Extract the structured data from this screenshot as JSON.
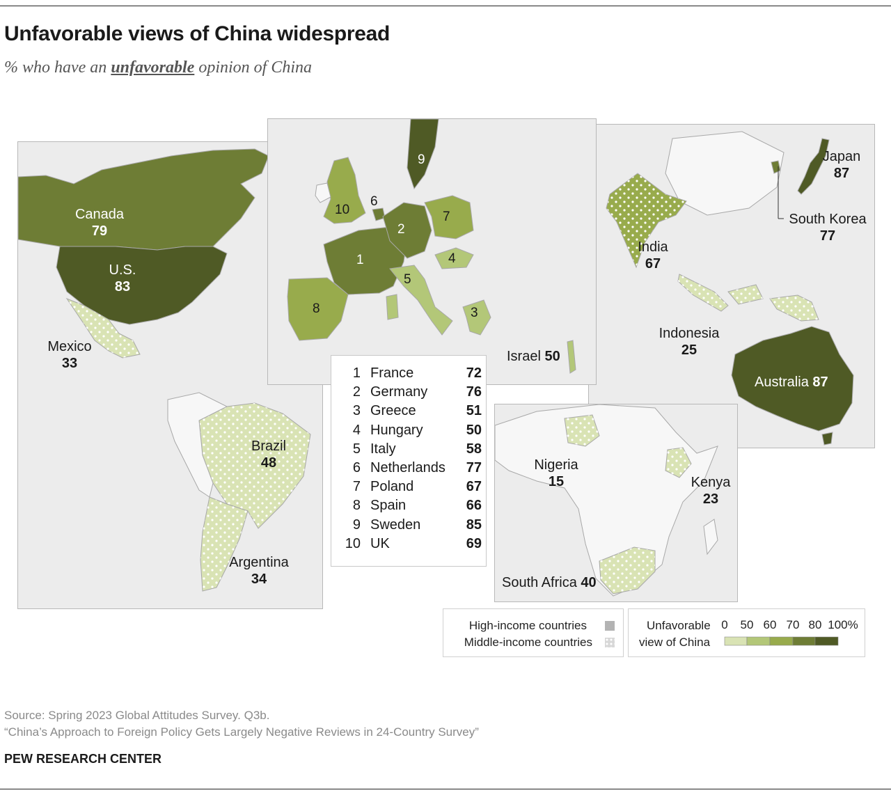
{
  "title": "Unfavorable views of China widespread",
  "subtitle": {
    "prefix": "% who have an",
    "emphasis": "unfavorable",
    "suffix": "opinion of China"
  },
  "colors": {
    "band_0_50": "#d9e3b4",
    "band_50_60": "#b3c778",
    "band_60_70": "#98ab4c",
    "band_70_80": "#6e7d35",
    "band_80_100": "#4f5a25",
    "no_data": "#ececec",
    "high_income_swatch": "#b3b3b3",
    "middle_income_swatch": "#d8d8d8"
  },
  "countries": {
    "canada": {
      "name": "Canada",
      "value": "79"
    },
    "us": {
      "name": "U.S.",
      "value": "83"
    },
    "mexico": {
      "name": "Mexico",
      "value": "33"
    },
    "brazil": {
      "name": "Brazil",
      "value": "48"
    },
    "argentina": {
      "name": "Argentina",
      "value": "34"
    },
    "israel": {
      "name": "Israel",
      "value": "50"
    },
    "japan": {
      "name": "Japan",
      "value": "87"
    },
    "south_korea": {
      "name": "South Korea",
      "value": "77"
    },
    "india": {
      "name": "India",
      "value": "67"
    },
    "indonesia": {
      "name": "Indonesia",
      "value": "25"
    },
    "australia": {
      "name": "Australia",
      "value": "87"
    },
    "nigeria": {
      "name": "Nigeria",
      "value": "15"
    },
    "kenya": {
      "name": "Kenya",
      "value": "23"
    },
    "south_africa": {
      "name": "South Africa",
      "value": "40"
    }
  },
  "europe_key": [
    {
      "num": "1",
      "name": "France",
      "value": "72"
    },
    {
      "num": "2",
      "name": "Germany",
      "value": "76"
    },
    {
      "num": "3",
      "name": "Greece",
      "value": "51"
    },
    {
      "num": "4",
      "name": "Hungary",
      "value": "50"
    },
    {
      "num": "5",
      "name": "Italy",
      "value": "58"
    },
    {
      "num": "6",
      "name": "Netherlands",
      "value": "77"
    },
    {
      "num": "7",
      "name": "Poland",
      "value": "67"
    },
    {
      "num": "8",
      "name": "Spain",
      "value": "66"
    },
    {
      "num": "9",
      "name": "Sweden",
      "value": "85"
    },
    {
      "num": "10",
      "name": "UK",
      "value": "69"
    }
  ],
  "legend": {
    "high_income": "High-income countries",
    "middle_income": "Middle-income countries",
    "scale_label_line1": "Unfavorable",
    "scale_label_line2": "view of China",
    "ticks": [
      "0",
      "50",
      "60",
      "70",
      "80",
      "100%"
    ]
  },
  "footer": {
    "source": "Source: Spring 2023 Global Attitudes Survey. Q3b.",
    "report": "“China’s Approach to Foreign Policy Gets Largely Negative Reviews in 24-Country Survey”",
    "brand": "PEW RESEARCH CENTER"
  }
}
